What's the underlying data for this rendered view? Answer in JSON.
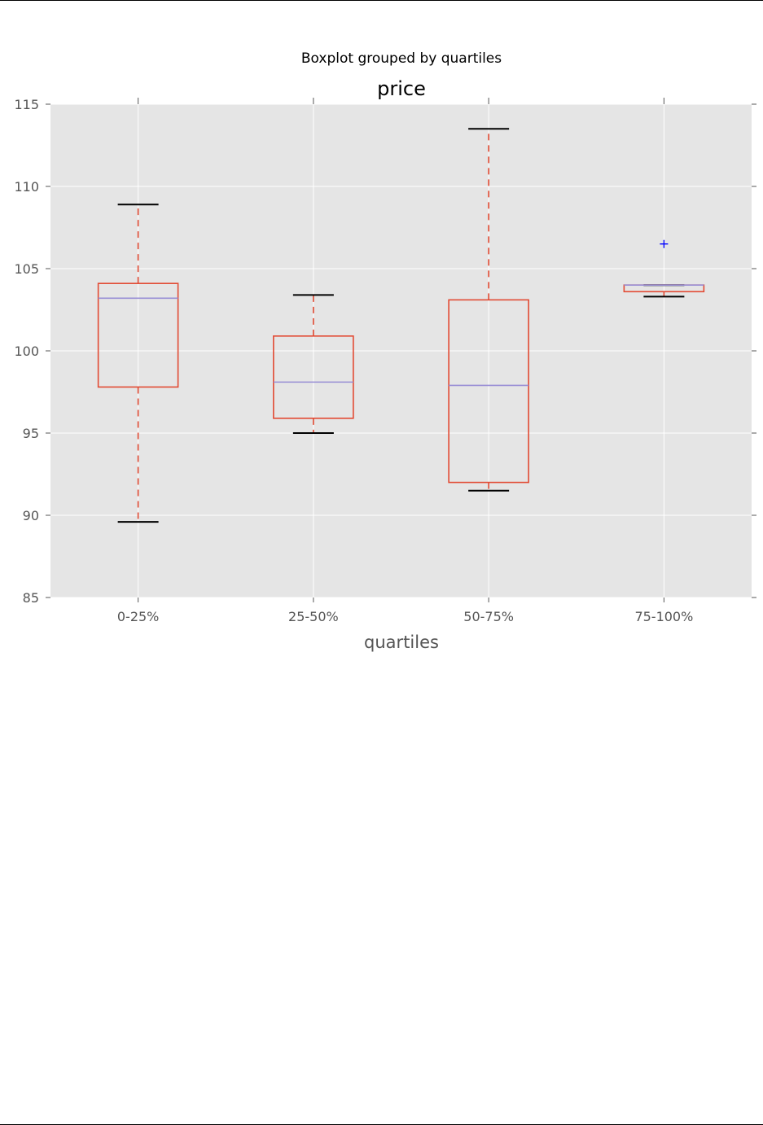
{
  "chart_data": {
    "type": "box",
    "suptitle": "Boxplot grouped by quartiles",
    "title": "price",
    "xlabel": "quartiles",
    "ylabel": "",
    "ylim": [
      85,
      115
    ],
    "yticks": [
      85,
      90,
      95,
      100,
      105,
      110,
      115
    ],
    "grid": true,
    "categories": [
      "0-25%",
      "25-50%",
      "50-75%",
      "75-100%"
    ],
    "boxes": [
      {
        "category": "0-25%",
        "whisker_low": 89.6,
        "q1": 97.8,
        "median": 103.2,
        "q3": 104.1,
        "whisker_high": 108.9,
        "outliers": []
      },
      {
        "category": "25-50%",
        "whisker_low": 95.0,
        "q1": 95.9,
        "median": 98.1,
        "q3": 100.9,
        "whisker_high": 103.4,
        "outliers": []
      },
      {
        "category": "50-75%",
        "whisker_low": 91.5,
        "q1": 92.0,
        "median": 97.9,
        "q3": 103.1,
        "whisker_high": 113.5,
        "outliers": []
      },
      {
        "category": "75-100%",
        "whisker_low": 103.3,
        "q1": 103.6,
        "median": 104.0,
        "q3": 104.0,
        "whisker_high": 104.0,
        "outliers": [
          106.5
        ]
      }
    ],
    "colors": {
      "background": "#e5e5e5",
      "grid": "#ffffff",
      "box": "#e24a33",
      "whisker": "#e24a33",
      "cap": "#000000",
      "median": "#988ed5",
      "outlier": "#0000ff",
      "axis_text": "#555555"
    }
  }
}
